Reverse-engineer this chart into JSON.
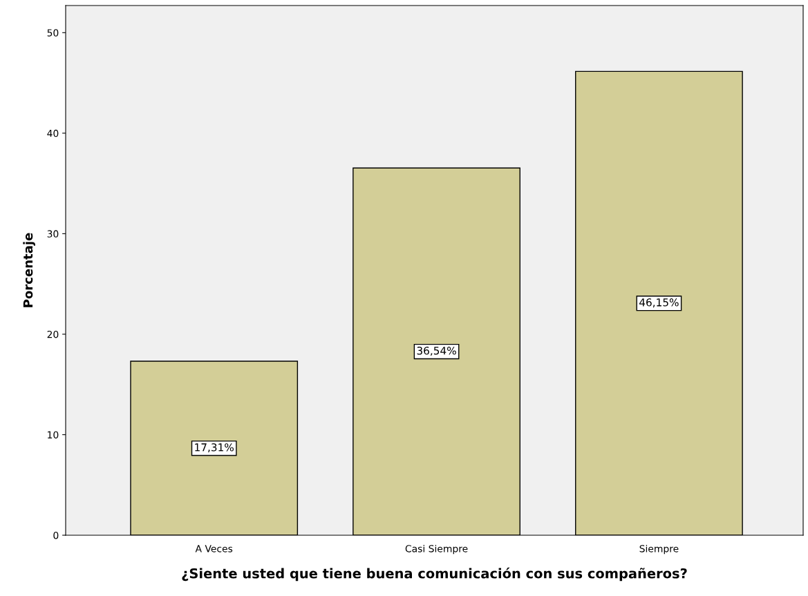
{
  "chart_data": {
    "type": "bar",
    "xlabel": "¿Siente usted que tiene buena comunicación con sus compañeros?",
    "ylabel": "Porcentaje",
    "categories": [
      "A Veces",
      "Casi Siempre",
      "Siempre"
    ],
    "values": [
      17.31,
      36.54,
      46.15
    ],
    "value_labels": [
      "17,31%",
      "36,54%",
      "46,15%"
    ],
    "color": "#d3ce97",
    "ylim": [
      0,
      52.7
    ],
    "yticks": [
      0,
      10,
      20,
      30,
      40,
      50
    ],
    "grid": false,
    "legend": false
  }
}
